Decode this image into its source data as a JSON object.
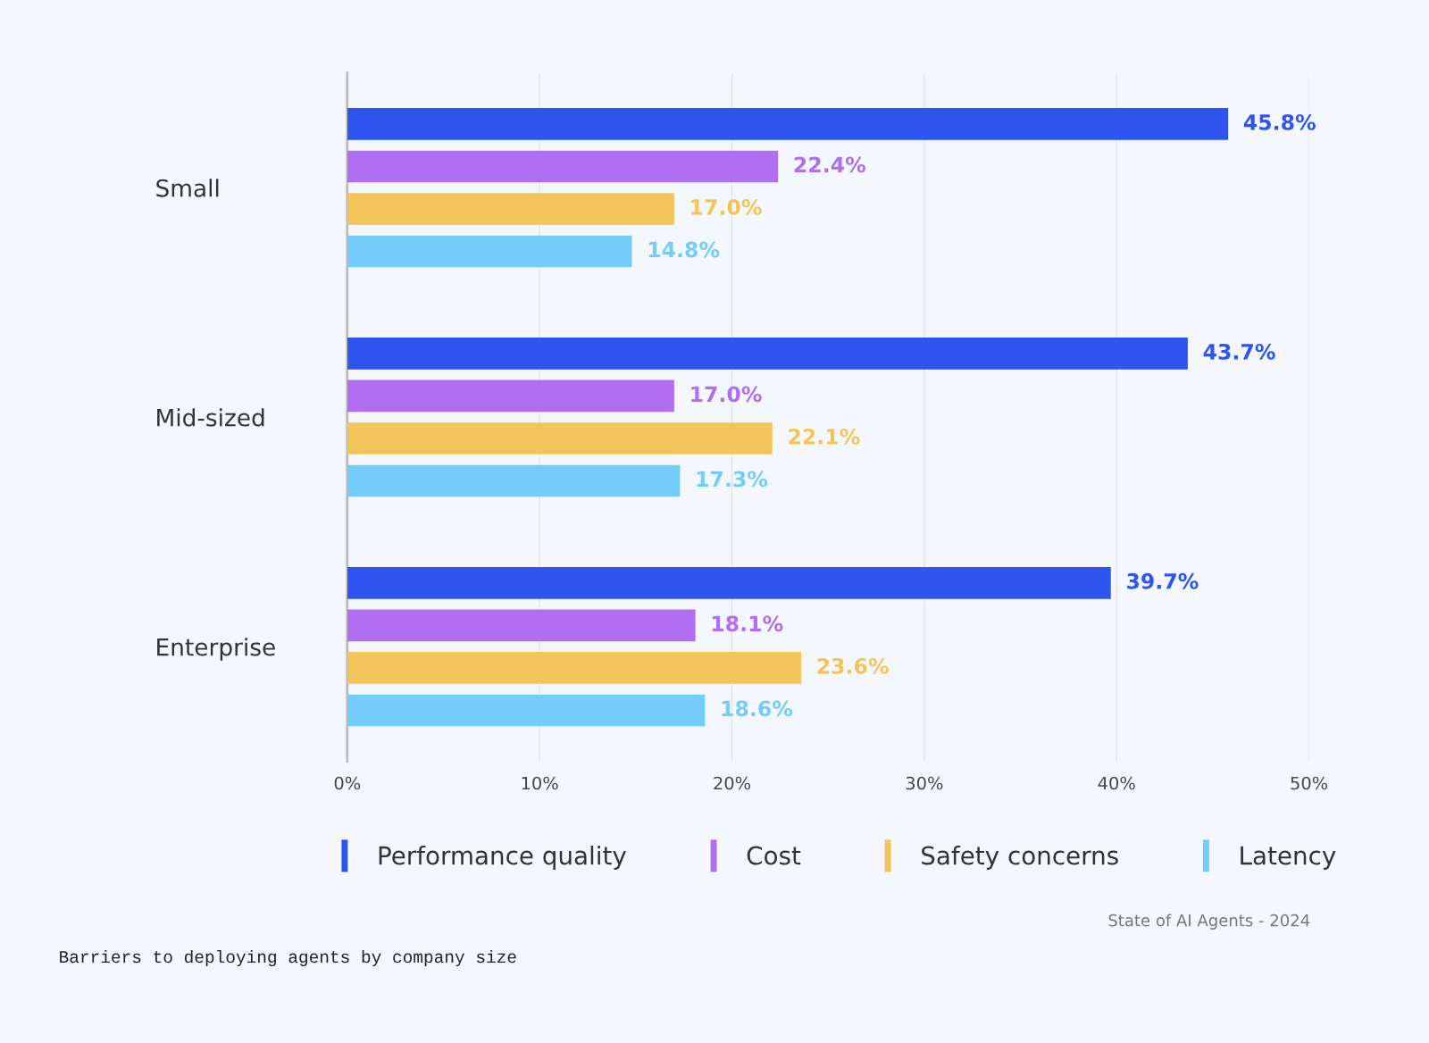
{
  "chart_data": {
    "type": "bar",
    "orientation": "horizontal",
    "categories": [
      "Small",
      "Mid-sized",
      "Enterprise"
    ],
    "series": [
      {
        "name": "Performance quality",
        "color": "#2f55f0",
        "values": [
          45.8,
          43.7,
          39.7
        ],
        "value_labels": [
          "45.8%",
          "43.7%",
          "39.7%"
        ]
      },
      {
        "name": "Cost",
        "color": "#b06ef0",
        "values": [
          22.4,
          17.0,
          18.1
        ],
        "value_labels": [
          "22.4%",
          "17.0%",
          "18.1%"
        ]
      },
      {
        "name": "Safety concerns",
        "color": "#f2c45a",
        "values": [
          17.0,
          22.1,
          23.6
        ],
        "value_labels": [
          "17.0%",
          "22.1%",
          "23.6%"
        ]
      },
      {
        "name": "Latency",
        "color": "#74cdf9",
        "values": [
          14.8,
          17.3,
          18.6
        ],
        "value_labels": [
          "14.8%",
          "17.3%",
          "18.6%"
        ]
      }
    ],
    "xlim": [
      0,
      50
    ],
    "xticks": [
      {
        "value": 0,
        "label": "0%"
      },
      {
        "value": 10,
        "label": "10%"
      },
      {
        "value": 20,
        "label": "20%"
      },
      {
        "value": 30,
        "label": "30%"
      },
      {
        "value": 40,
        "label": "40%"
      },
      {
        "value": 50,
        "label": "50%"
      }
    ],
    "grid": "x",
    "legend": "bottom",
    "annotations": [
      "State of AI Agents - 2024",
      "Barriers to deploying agents by company size"
    ]
  }
}
